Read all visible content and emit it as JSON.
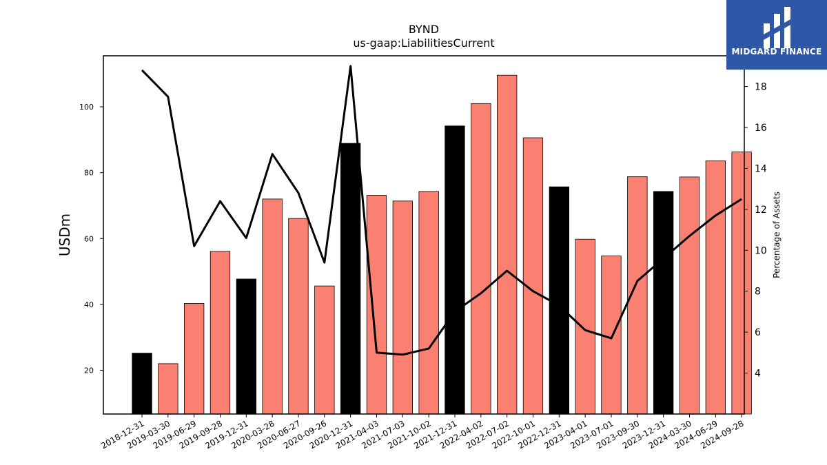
{
  "brand": {
    "name": "MIDGARD FINANCE",
    "color": "#2f57a8"
  },
  "chart_data": {
    "type": "bar",
    "title": "BYND",
    "subtitle": "us-gaap:LiabilitiesCurrent",
    "ylabel": "USDm",
    "y2label": "Percentage of Assets",
    "ylim": [
      6.7,
      115.5
    ],
    "y2lim": [
      2.0,
      19.5
    ],
    "yticks": [
      20,
      40,
      60,
      80,
      100
    ],
    "y2ticks": [
      4,
      6,
      8,
      10,
      12,
      14,
      16,
      18
    ],
    "categories": [
      "2018-12-31",
      "2019-03-30",
      "2019-06-29",
      "2019-09-28",
      "2019-12-31",
      "2020-03-28",
      "2020-06-27",
      "2020-09-26",
      "2020-12-31",
      "2021-04-03",
      "2021-07-03",
      "2021-10-02",
      "2021-12-31",
      "2022-04-02",
      "2022-07-02",
      "2022-10-01",
      "2022-12-31",
      "2023-04-01",
      "2023-07-01",
      "2023-09-30",
      "2023-12-31",
      "2024-03-30",
      "2024-06-29",
      "2024-09-28"
    ],
    "series": [
      {
        "kind": "bar",
        "values": [
          25.2,
          22.0,
          40.3,
          56.1,
          47.7,
          72.0,
          66.1,
          45.6,
          88.9,
          73.1,
          71.4,
          74.3,
          94.2,
          101.0,
          109.6,
          90.6,
          75.7,
          59.8,
          54.7,
          78.8,
          74.3,
          78.7,
          83.6,
          86.3
        ]
      },
      {
        "kind": "line",
        "axis": "right",
        "values": [
          18.8,
          17.5,
          10.2,
          12.4,
          10.6,
          14.7,
          12.8,
          9.4,
          19.0,
          5.0,
          4.9,
          5.2,
          7.0,
          7.9,
          9.0,
          8.0,
          7.3,
          6.1,
          5.7,
          8.5,
          9.6,
          10.7,
          11.7,
          12.5
        ]
      }
    ],
    "colors": {
      "bar": "#fa8072",
      "bar_year_end": "#000000",
      "line": "#000000"
    },
    "year_end_bar_color": "black",
    "grid": false
  }
}
